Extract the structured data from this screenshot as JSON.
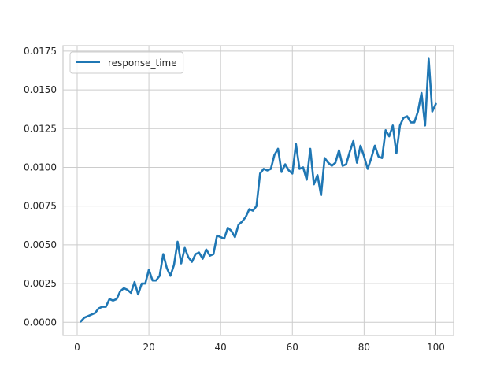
{
  "chart_data": {
    "type": "line",
    "title": "",
    "xlabel": "",
    "ylabel": "",
    "xlim": [
      -3.95,
      104.95
    ],
    "ylim": [
      -0.00085,
      0.01785
    ],
    "xticks": [
      0,
      20,
      40,
      60,
      80,
      100
    ],
    "yticks": [
      0.0,
      0.0025,
      0.005,
      0.0075,
      0.01,
      0.0125,
      0.015,
      0.0175
    ],
    "xtick_labels": [
      "0",
      "20",
      "40",
      "60",
      "80",
      "100"
    ],
    "ytick_labels": [
      "0.0000",
      "0.0025",
      "0.0050",
      "0.0075",
      "0.0100",
      "0.0125",
      "0.0150",
      "0.0175"
    ],
    "grid": true,
    "legend_position": "top-left",
    "series": [
      {
        "name": "response_time",
        "color": "#1f77b4",
        "x": [
          1,
          2,
          3,
          4,
          5,
          6,
          7,
          8,
          9,
          10,
          11,
          12,
          13,
          14,
          15,
          16,
          17,
          18,
          19,
          20,
          21,
          22,
          23,
          24,
          25,
          26,
          27,
          28,
          29,
          30,
          31,
          32,
          33,
          34,
          35,
          36,
          37,
          38,
          39,
          40,
          41,
          42,
          43,
          44,
          45,
          46,
          47,
          48,
          49,
          50,
          51,
          52,
          53,
          54,
          55,
          56,
          57,
          58,
          59,
          60,
          61,
          62,
          63,
          64,
          65,
          66,
          67,
          68,
          69,
          70,
          71,
          72,
          73,
          74,
          75,
          76,
          77,
          78,
          79,
          80,
          81,
          82,
          83,
          84,
          85,
          86,
          87,
          88,
          89,
          90,
          91,
          92,
          93,
          94,
          95,
          96,
          97,
          98,
          99,
          100
        ],
        "y": [
          5e-05,
          0.0003,
          0.0004,
          0.0005,
          0.0006,
          0.0009,
          0.001,
          0.001,
          0.0015,
          0.0014,
          0.0015,
          0.002,
          0.0022,
          0.0021,
          0.0019,
          0.0026,
          0.0018,
          0.0025,
          0.0025,
          0.0034,
          0.0027,
          0.0027,
          0.003,
          0.0044,
          0.0035,
          0.003,
          0.0037,
          0.0052,
          0.0038,
          0.0048,
          0.0042,
          0.0039,
          0.0044,
          0.0045,
          0.0041,
          0.0047,
          0.0043,
          0.0044,
          0.0056,
          0.0055,
          0.0054,
          0.0061,
          0.0059,
          0.0055,
          0.0063,
          0.0065,
          0.0068,
          0.0073,
          0.0072,
          0.0075,
          0.0096,
          0.0099,
          0.0098,
          0.0099,
          0.0108,
          0.0112,
          0.0097,
          0.0102,
          0.0098,
          0.0096,
          0.0115,
          0.0099,
          0.01,
          0.0092,
          0.0112,
          0.0089,
          0.0095,
          0.0082,
          0.0106,
          0.0103,
          0.0101,
          0.0103,
          0.0111,
          0.0101,
          0.0102,
          0.011,
          0.0117,
          0.0103,
          0.0114,
          0.0107,
          0.0099,
          0.0106,
          0.0114,
          0.0107,
          0.0106,
          0.0124,
          0.012,
          0.0127,
          0.0109,
          0.0127,
          0.0132,
          0.0133,
          0.0129,
          0.0129,
          0.0136,
          0.0148,
          0.0127,
          0.017,
          0.0136,
          0.0141
        ]
      }
    ]
  }
}
